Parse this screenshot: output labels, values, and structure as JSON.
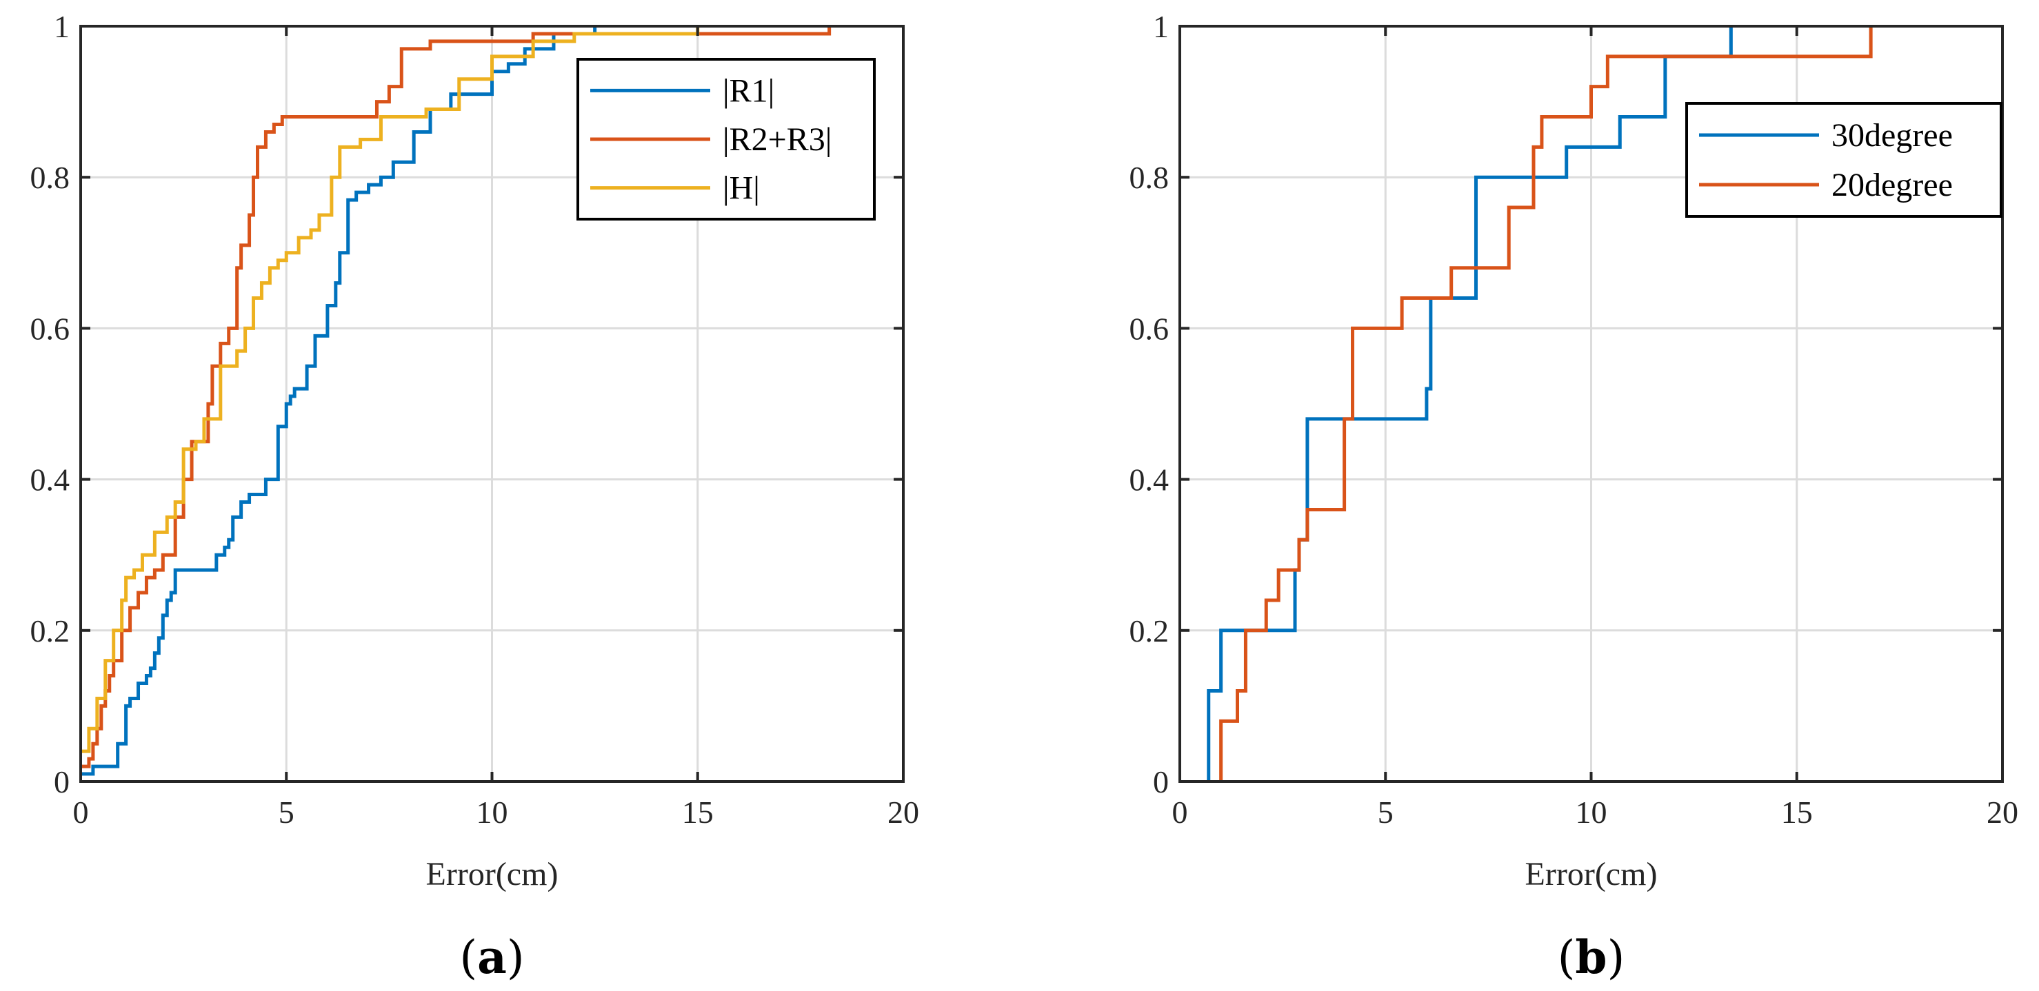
{
  "colors": {
    "blue": "#0072BD",
    "orange": "#D95319",
    "yellow": "#EDB120",
    "grid": "#dcdcdc",
    "axis": "#262626"
  },
  "chart_data": [
    {
      "type": "line",
      "panel": "(a)",
      "panel_letter": "a",
      "title": "",
      "xlabel": "Error(cm)",
      "ylabel": "",
      "xlim": [
        0,
        20
      ],
      "ylim": [
        0,
        1
      ],
      "xticks": [
        0,
        5,
        10,
        15,
        20
      ],
      "xtick_labels": [
        "0",
        "5",
        "10",
        "15",
        "20"
      ],
      "yticks": [
        0,
        0.2,
        0.4,
        0.6,
        0.8,
        1
      ],
      "ytick_labels": [
        "0",
        "0.2",
        "0.4",
        "0.6",
        "0.8",
        "1"
      ],
      "grid": true,
      "legend_position": "top-right",
      "series": [
        {
          "name": "|R1|",
          "color": "#0072BD",
          "style": "step",
          "x": [
            0,
            0.3,
            0.9,
            1.1,
            1.2,
            1.4,
            1.6,
            1.7,
            1.8,
            1.9,
            2.0,
            2.1,
            2.2,
            2.3,
            2.4,
            3.3,
            3.5,
            3.6,
            3.7,
            3.9,
            4.0,
            4.1,
            4.5,
            4.8,
            5.0,
            5.1,
            5.2,
            5.5,
            5.7,
            6.0,
            6.2,
            6.3,
            6.5,
            6.7,
            6.8,
            7.0,
            7.3,
            7.6,
            8.1,
            8.3,
            8.5,
            9.0,
            9.4,
            10.0,
            10.4,
            10.8,
            11.5,
            12.5
          ],
          "y": [
            0.01,
            0.02,
            0.05,
            0.1,
            0.11,
            0.13,
            0.14,
            0.15,
            0.17,
            0.19,
            0.22,
            0.24,
            0.25,
            0.28,
            0.28,
            0.3,
            0.31,
            0.32,
            0.35,
            0.37,
            0.37,
            0.38,
            0.4,
            0.47,
            0.5,
            0.51,
            0.52,
            0.55,
            0.59,
            0.63,
            0.66,
            0.7,
            0.77,
            0.78,
            0.78,
            0.79,
            0.8,
            0.82,
            0.86,
            0.86,
            0.89,
            0.91,
            0.91,
            0.94,
            0.95,
            0.97,
            0.99,
            1.0
          ]
        },
        {
          "name": "|R2+R3|",
          "color": "#D95319",
          "style": "step",
          "x": [
            0,
            0.2,
            0.3,
            0.4,
            0.5,
            0.6,
            0.7,
            0.8,
            1.0,
            1.2,
            1.4,
            1.6,
            1.8,
            2.0,
            2.3,
            2.5,
            2.7,
            3.1,
            3.2,
            3.4,
            3.6,
            3.8,
            3.9,
            4.1,
            4.2,
            4.3,
            4.5,
            4.7,
            4.9,
            5.1,
            5.3,
            5.8,
            6.1,
            6.5,
            7.0,
            7.2,
            7.5,
            7.8,
            8.5,
            9.5,
            11.0,
            13.5,
            18.2
          ],
          "y": [
            0.02,
            0.03,
            0.05,
            0.07,
            0.1,
            0.12,
            0.14,
            0.16,
            0.2,
            0.23,
            0.25,
            0.27,
            0.28,
            0.3,
            0.35,
            0.4,
            0.45,
            0.5,
            0.55,
            0.58,
            0.6,
            0.68,
            0.71,
            0.75,
            0.8,
            0.84,
            0.86,
            0.87,
            0.88,
            0.88,
            0.88,
            0.88,
            0.88,
            0.88,
            0.88,
            0.9,
            0.92,
            0.97,
            0.98,
            0.98,
            0.99,
            0.99,
            1.0
          ]
        },
        {
          "name": "|H|",
          "color": "#EDB120",
          "style": "step",
          "x": [
            0,
            0.2,
            0.4,
            0.6,
            0.8,
            1.0,
            1.1,
            1.3,
            1.5,
            1.8,
            2.1,
            2.3,
            2.5,
            2.8,
            3.0,
            3.4,
            3.8,
            4.0,
            4.2,
            4.4,
            4.6,
            4.8,
            5.0,
            5.3,
            5.6,
            5.8,
            6.1,
            6.3,
            6.8,
            7.3,
            8.4,
            9.2,
            10.0,
            11.0,
            12.0,
            15.0
          ],
          "y": [
            0.04,
            0.07,
            0.11,
            0.16,
            0.2,
            0.24,
            0.27,
            0.28,
            0.3,
            0.33,
            0.35,
            0.37,
            0.44,
            0.45,
            0.48,
            0.55,
            0.57,
            0.6,
            0.64,
            0.66,
            0.68,
            0.69,
            0.7,
            0.72,
            0.73,
            0.75,
            0.8,
            0.84,
            0.85,
            0.88,
            0.89,
            0.93,
            0.96,
            0.98,
            0.99,
            1.0
          ]
        }
      ]
    },
    {
      "type": "line",
      "panel": "(b)",
      "panel_letter": "b",
      "title": "",
      "xlabel": "Error(cm)",
      "ylabel": "",
      "xlim": [
        0,
        20
      ],
      "ylim": [
        0,
        1
      ],
      "xticks": [
        0,
        5,
        10,
        15,
        20
      ],
      "xtick_labels": [
        "0",
        "5",
        "10",
        "15",
        "20"
      ],
      "yticks": [
        0,
        0.2,
        0.4,
        0.6,
        0.8,
        1
      ],
      "ytick_labels": [
        "0",
        "0.2",
        "0.4",
        "0.6",
        "0.8",
        "1"
      ],
      "grid": true,
      "legend_position": "top-right",
      "series": [
        {
          "name": "30degree",
          "color": "#0072BD",
          "style": "step",
          "x": [
            0.7,
            0.7,
            1.0,
            2.8,
            2.9,
            3.1,
            6.0,
            6.1,
            7.2,
            9.4,
            10.7,
            11.8,
            13.4
          ],
          "y": [
            0.0,
            0.12,
            0.2,
            0.28,
            0.32,
            0.48,
            0.52,
            0.64,
            0.8,
            0.84,
            0.88,
            0.96,
            1.0
          ]
        },
        {
          "name": "20degree",
          "color": "#D95319",
          "style": "step",
          "x": [
            1.0,
            1.0,
            1.4,
            1.6,
            2.1,
            2.4,
            2.9,
            3.1,
            4.0,
            4.2,
            5.4,
            6.6,
            8.0,
            8.6,
            8.8,
            10.0,
            10.4,
            16.8
          ],
          "y": [
            0.0,
            0.08,
            0.12,
            0.2,
            0.24,
            0.28,
            0.32,
            0.36,
            0.48,
            0.6,
            0.64,
            0.68,
            0.76,
            0.84,
            0.88,
            0.92,
            0.96,
            1.0
          ]
        }
      ]
    }
  ]
}
